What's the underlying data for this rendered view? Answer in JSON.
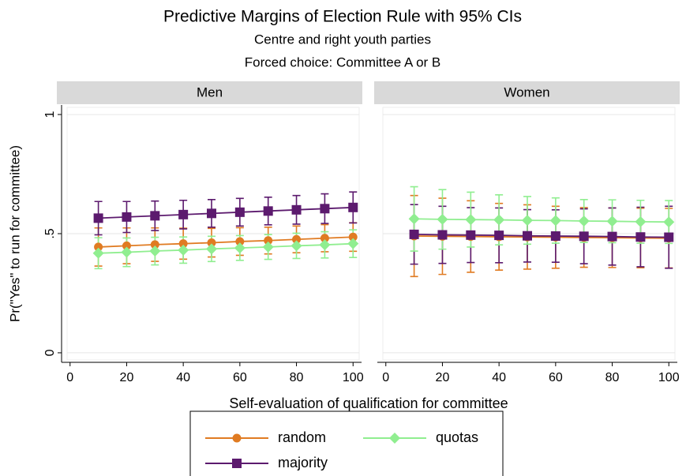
{
  "header": {
    "title": "Predictive Margins of Election Rule with 95% CIs",
    "subtitles": [
      "Centre and right youth parties",
      "Forced choice: Committee A or B"
    ]
  },
  "axes": {
    "x_label": "Self-evaluation of qualification for committee",
    "y_label": "Pr(\"Yes\" to run for committee)"
  },
  "chart_data": [
    {
      "type": "line",
      "title": "Men",
      "x": [
        10,
        20,
        30,
        40,
        50,
        60,
        70,
        80,
        90,
        100
      ],
      "xlim": [
        -3,
        103
      ],
      "xticks": [
        0,
        20,
        40,
        60,
        80,
        100
      ],
      "ylim": [
        -0.04,
        1.04
      ],
      "yticks": [
        0,
        {
          "value": 0.5,
          "label": ".5"
        },
        1
      ],
      "grid": true,
      "series": [
        {
          "name": "random",
          "color": "#e07b22",
          "marker": "circle",
          "values": [
            0.444,
            0.449,
            0.454,
            0.458,
            0.462,
            0.467,
            0.471,
            0.476,
            0.481,
            0.486
          ],
          "errors": [
            0.08,
            0.075,
            0.07,
            0.065,
            0.06,
            0.058,
            0.056,
            0.056,
            0.057,
            0.06
          ]
        },
        {
          "name": "majority",
          "color": "#5c1a6e",
          "marker": "square",
          "values": [
            0.565,
            0.57,
            0.575,
            0.58,
            0.585,
            0.59,
            0.595,
            0.6,
            0.605,
            0.61
          ],
          "errors": [
            0.07,
            0.065,
            0.062,
            0.06,
            0.058,
            0.058,
            0.058,
            0.06,
            0.062,
            0.065
          ]
        },
        {
          "name": "quotas",
          "color": "#90ee90",
          "marker": "diamond",
          "values": [
            0.418,
            0.422,
            0.427,
            0.431,
            0.436,
            0.44,
            0.444,
            0.449,
            0.453,
            0.458
          ],
          "errors": [
            0.065,
            0.06,
            0.058,
            0.055,
            0.053,
            0.052,
            0.052,
            0.053,
            0.055,
            0.058
          ]
        }
      ]
    },
    {
      "type": "line",
      "title": "Women",
      "x": [
        10,
        20,
        30,
        40,
        50,
        60,
        70,
        80,
        90,
        100
      ],
      "xlim": [
        -3,
        103
      ],
      "xticks": [
        0,
        20,
        40,
        60,
        80,
        100
      ],
      "ylim": [
        -0.04,
        1.04
      ],
      "yticks": [
        0,
        0.5,
        1
      ],
      "grid": true,
      "series": [
        {
          "color": "#e07b22",
          "marker": "circle",
          "values": [
            0.49,
            0.489,
            0.488,
            0.487,
            0.486,
            0.485,
            0.484,
            0.483,
            0.482,
            0.481
          ],
          "errors": [
            0.17,
            0.16,
            0.15,
            0.14,
            0.135,
            0.13,
            0.125,
            0.125,
            0.125,
            0.125
          ]
        },
        {
          "color": "#5c1a6e",
          "marker": "square",
          "values": [
            0.497,
            0.495,
            0.494,
            0.493,
            0.491,
            0.49,
            0.489,
            0.488,
            0.486,
            0.485
          ],
          "errors": [
            0.125,
            0.12,
            0.115,
            0.115,
            0.11,
            0.11,
            0.115,
            0.12,
            0.125,
            0.13
          ]
        },
        {
          "color": "#90ee90",
          "marker": "diamond",
          "values": [
            0.562,
            0.56,
            0.559,
            0.558,
            0.556,
            0.555,
            0.553,
            0.552,
            0.55,
            0.549
          ],
          "errors": [
            0.135,
            0.125,
            0.115,
            0.105,
            0.1,
            0.095,
            0.09,
            0.09,
            0.09,
            0.09
          ]
        }
      ]
    }
  ]
}
